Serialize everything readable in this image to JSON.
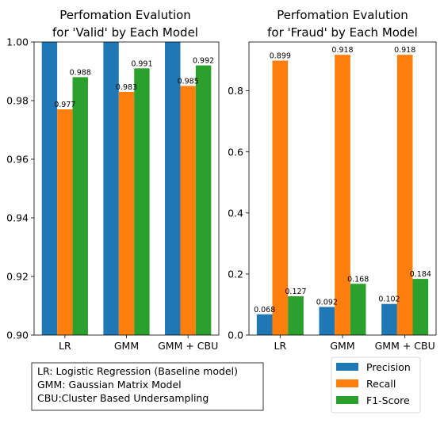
{
  "chart_data": [
    {
      "type": "bar",
      "title": [
        "Perfomation Evalution",
        "for 'Valid' by Each Model"
      ],
      "categories": [
        "LR",
        "GMM",
        "GMM + CBU"
      ],
      "ylim": [
        0.9,
        1.0
      ],
      "yticks": [
        "0.90",
        "0.92",
        "0.94",
        "0.96",
        "0.98",
        "1.00"
      ],
      "yticks_values": [
        0.9,
        0.92,
        0.94,
        0.96,
        0.98,
        1.0
      ],
      "series": [
        {
          "name": "Precision",
          "values": [
            1.0,
            1.0,
            1.0
          ],
          "labels": [
            "",
            "",
            ""
          ]
        },
        {
          "name": "Recall",
          "values": [
            0.977,
            0.983,
            0.985
          ],
          "labels": [
            "0.977",
            "0.983",
            "0.985"
          ]
        },
        {
          "name": "F1-Score",
          "values": [
            0.988,
            0.991,
            0.992
          ],
          "labels": [
            "0.988",
            "0.991",
            "0.992"
          ]
        }
      ]
    },
    {
      "type": "bar",
      "title": [
        "Perfomation Evalution",
        "for 'Fraud' by Each Model"
      ],
      "categories": [
        "LR",
        "GMM",
        "GMM + CBU"
      ],
      "ylim": [
        0.0,
        0.96
      ],
      "yticks": [
        "0.0",
        "0.2",
        "0.4",
        "0.6",
        "0.8"
      ],
      "yticks_values": [
        0.0,
        0.2,
        0.4,
        0.6,
        0.8
      ],
      "series": [
        {
          "name": "Precision",
          "values": [
            0.068,
            0.092,
            0.102
          ],
          "labels": [
            "0.068",
            "0.092",
            "0.102"
          ]
        },
        {
          "name": "Recall",
          "values": [
            0.899,
            0.918,
            0.918
          ],
          "labels": [
            "0.899",
            "0.918",
            "0.918"
          ]
        },
        {
          "name": "F1-Score",
          "values": [
            0.127,
            0.168,
            0.184
          ],
          "labels": [
            "0.127",
            "0.168",
            "0.184"
          ]
        }
      ]
    }
  ],
  "colors": {
    "Precision": "#1f77b4",
    "Recall": "#ff7f0e",
    "F1-Score": "#2ca02c"
  },
  "legend": {
    "placement": "bottom-right",
    "items": [
      "Precision",
      "Recall",
      "F1-Score"
    ]
  },
  "note": {
    "lines": [
      "LR: Logistic Regression (Baseline model)",
      "GMM: Gaussian Matrix Model",
      "CBU:Cluster Based Undersampling"
    ]
  }
}
